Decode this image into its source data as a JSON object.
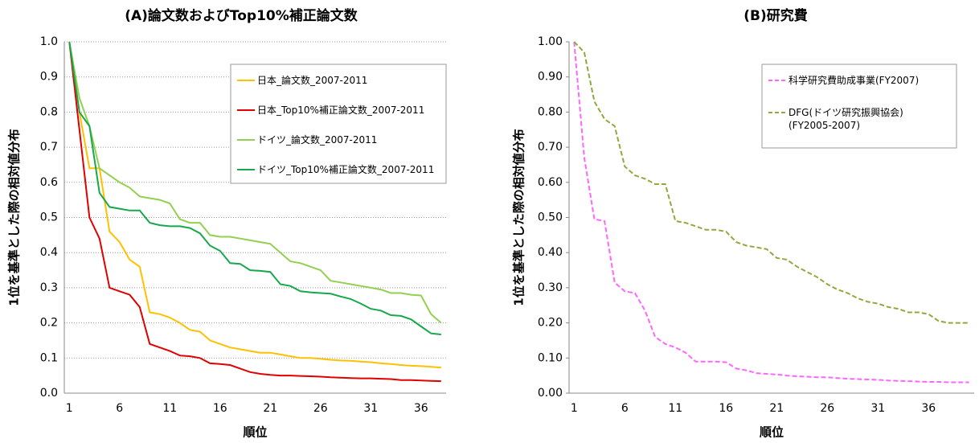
{
  "chart_data": [
    {
      "type": "line",
      "title": "(A)論文数およびTop10%補正論文数",
      "x_label": "順位",
      "y_label": "1位を基準とした際の相対値分布",
      "categories": [
        "1",
        null,
        null,
        null,
        null,
        "6",
        null,
        null,
        null,
        null,
        "11",
        null,
        null,
        null,
        null,
        "16",
        null,
        null,
        null,
        null,
        "21",
        null,
        null,
        null,
        null,
        "26",
        null,
        null,
        null,
        null,
        "31",
        null,
        null,
        null,
        null,
        "36",
        null,
        null
      ],
      "ylim": [
        0,
        1
      ],
      "yticks": [
        {
          "value": 0,
          "label": "0.0"
        },
        0.1,
        0.2,
        0.3,
        0.4,
        0.5,
        0.6,
        0.7,
        0.8,
        0.9,
        {
          "value": 1,
          "label": "1.0"
        }
      ],
      "grid": true,
      "legend": "upper right",
      "series": [
        {
          "name": "日本_論文数_2007-2011",
          "color": "#ffc000",
          "values": [
            1.0,
            0.8,
            0.64,
            0.64,
            0.46,
            0.43,
            0.38,
            0.36,
            0.23,
            0.225,
            0.215,
            0.2,
            0.18,
            0.175,
            0.15,
            0.14,
            0.13,
            0.125,
            0.12,
            0.115,
            0.115,
            0.11,
            0.105,
            0.1,
            0.1,
            0.098,
            0.095,
            0.093,
            0.092,
            0.09,
            0.088,
            0.085,
            0.083,
            0.08,
            0.078,
            0.077,
            0.075,
            0.073
          ]
        },
        {
          "name": "日本_Top10%補正論文数_2007-2011",
          "color": "#e00000",
          "values": [
            1.0,
            0.75,
            0.5,
            0.44,
            0.3,
            0.29,
            0.28,
            0.245,
            0.14,
            0.13,
            0.12,
            0.107,
            0.105,
            0.1,
            0.085,
            0.083,
            0.08,
            0.07,
            0.06,
            0.055,
            0.052,
            0.05,
            0.05,
            0.049,
            0.048,
            0.047,
            0.045,
            0.044,
            0.043,
            0.042,
            0.042,
            0.041,
            0.04,
            0.037,
            0.037,
            0.036,
            0.035,
            0.034
          ]
        },
        {
          "name": "ドイツ_論文数_2007-2011",
          "color": "#92d050",
          "values": [
            1.0,
            0.84,
            0.76,
            0.64,
            0.62,
            0.6,
            0.585,
            0.56,
            0.555,
            0.55,
            0.54,
            0.495,
            0.485,
            0.485,
            0.45,
            0.445,
            0.445,
            0.44,
            0.435,
            0.43,
            0.425,
            0.4,
            0.375,
            0.37,
            0.36,
            0.35,
            0.32,
            0.315,
            0.31,
            0.305,
            0.3,
            0.295,
            0.285,
            0.285,
            0.28,
            0.278,
            0.225,
            0.2
          ]
        },
        {
          "name": "ドイツ_Top10%補正論文数_2007-2011",
          "color": "#16a84a",
          "values": [
            1.0,
            0.8,
            0.76,
            0.57,
            0.53,
            0.525,
            0.52,
            0.52,
            0.485,
            0.478,
            0.475,
            0.475,
            0.47,
            0.455,
            0.42,
            0.405,
            0.37,
            0.368,
            0.35,
            0.348,
            0.345,
            0.31,
            0.305,
            0.29,
            0.287,
            0.285,
            0.283,
            0.275,
            0.268,
            0.255,
            0.24,
            0.235,
            0.222,
            0.22,
            0.21,
            0.19,
            0.17,
            0.167
          ]
        }
      ]
    },
    {
      "type": "line",
      "title": "(B)研究費",
      "x_label": "順位",
      "y_label": "1位を基準とした際の相対値分布",
      "categories": [
        "1",
        null,
        null,
        null,
        null,
        "6",
        null,
        null,
        null,
        null,
        "11",
        null,
        null,
        null,
        null,
        "16",
        null,
        null,
        null,
        null,
        "21",
        null,
        null,
        null,
        null,
        "26",
        null,
        null,
        null,
        null,
        "31",
        null,
        null,
        null,
        null,
        "36",
        null,
        null,
        null,
        null
      ],
      "ylim": [
        0,
        1
      ],
      "yticks": [
        {
          "value": 0,
          "label": "0.00"
        },
        {
          "value": 0.1,
          "label": "0.10"
        },
        {
          "value": 0.2,
          "label": "0.20"
        },
        {
          "value": 0.3,
          "label": "0.30"
        },
        {
          "value": 0.4,
          "label": "0.40"
        },
        {
          "value": 0.5,
          "label": "0.50"
        },
        {
          "value": 0.6,
          "label": "0.60"
        },
        {
          "value": 0.7,
          "label": "0.70"
        },
        {
          "value": 0.8,
          "label": "0.80"
        },
        {
          "value": 0.9,
          "label": "0.90"
        },
        {
          "value": 1,
          "label": "1.00"
        }
      ],
      "grid": false,
      "legend": "upper right",
      "dashed": true,
      "series": [
        {
          "name": "科学研究費助成事業(FY2007)",
          "color": "#ff66ff",
          "values": [
            1.0,
            0.67,
            0.495,
            0.49,
            0.315,
            0.29,
            0.285,
            0.235,
            0.16,
            0.14,
            0.13,
            0.115,
            0.09,
            0.09,
            0.09,
            0.088,
            0.07,
            0.065,
            0.057,
            0.055,
            0.053,
            0.05,
            0.048,
            0.047,
            0.045,
            0.045,
            0.043,
            0.041,
            0.04,
            0.039,
            0.038,
            0.036,
            0.035,
            0.034,
            0.033,
            0.032,
            0.032,
            0.031,
            0.031,
            0.031
          ]
        },
        {
          "name": "DFG(ドイツ研究振興協会)(FY2005-2007)",
          "color": "#8faa3c",
          "values": [
            1.0,
            0.97,
            0.83,
            0.78,
            0.76,
            0.645,
            0.62,
            0.61,
            0.595,
            0.595,
            0.49,
            0.485,
            0.475,
            0.465,
            0.465,
            0.46,
            0.43,
            0.42,
            0.415,
            0.41,
            0.385,
            0.38,
            0.36,
            0.345,
            0.33,
            0.31,
            0.295,
            0.285,
            0.27,
            0.26,
            0.255,
            0.245,
            0.24,
            0.23,
            0.23,
            0.225,
            0.205,
            0.2,
            0.2,
            0.2
          ]
        }
      ]
    }
  ]
}
